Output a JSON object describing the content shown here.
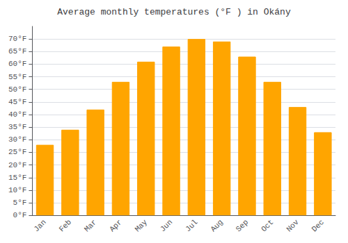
{
  "chart_data": {
    "type": "bar",
    "title": "Average monthly temperatures (°F ) in Okány",
    "categories": [
      "Jan",
      "Feb",
      "Mar",
      "Apr",
      "May",
      "Jun",
      "Jul",
      "Aug",
      "Sep",
      "Oct",
      "Nov",
      "Dec"
    ],
    "values": [
      28,
      34,
      42,
      53,
      61,
      67,
      70,
      69,
      63,
      53,
      43,
      33
    ],
    "color": "#FFA500",
    "ylim": [
      0,
      75
    ],
    "yticks": [
      {
        "value": 0,
        "label": "0°F"
      },
      {
        "value": 5,
        "label": "5°F"
      },
      {
        "value": 10,
        "label": "10°F"
      },
      {
        "value": 15,
        "label": "15°F"
      },
      {
        "value": 20,
        "label": "20°F"
      },
      {
        "value": 25,
        "label": "25°F"
      },
      {
        "value": 30,
        "label": "30°F"
      },
      {
        "value": 35,
        "label": "35°F"
      },
      {
        "value": 40,
        "label": "40°F"
      },
      {
        "value": 45,
        "label": "45°F"
      },
      {
        "value": 50,
        "label": "50°F"
      },
      {
        "value": 55,
        "label": "55°F"
      },
      {
        "value": 60,
        "label": "60°F"
      },
      {
        "value": 65,
        "label": "65°F"
      },
      {
        "value": 70,
        "label": "70°F"
      }
    ],
    "grid": true
  }
}
